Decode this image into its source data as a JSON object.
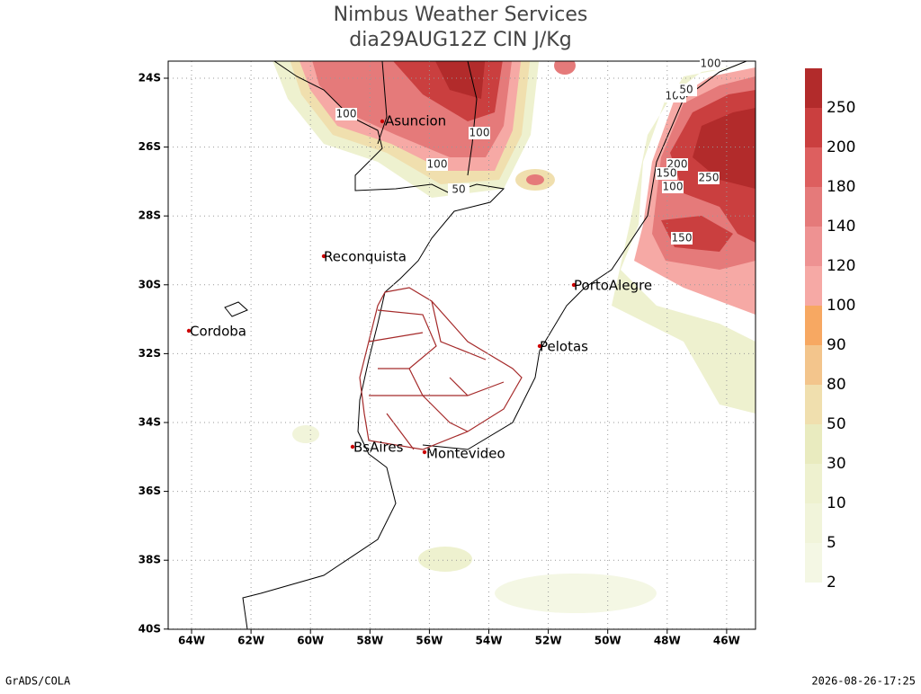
{
  "header": {
    "title": "Nimbus Weather Services",
    "subtitle": "dia29AUG12Z CIN J/Kg"
  },
  "axes": {
    "lat_labels": [
      "24S",
      "26S",
      "28S",
      "30S",
      "32S",
      "34S",
      "36S",
      "38S",
      "40S"
    ],
    "lon_labels": [
      "64W",
      "62W",
      "60W",
      "58W",
      "56W",
      "54W",
      "52W",
      "50W",
      "48W",
      "46W"
    ]
  },
  "cities": [
    "Asuncion",
    "Reconquista",
    "Cordoba",
    "PortoAlegre",
    "Pelotas",
    "BsAires",
    "Montevideo"
  ],
  "contour_labels": [
    "100",
    "100",
    "100",
    "100",
    "50",
    "100",
    "200",
    "150",
    "250",
    "100",
    "150",
    "50"
  ],
  "colorbar": {
    "labels": [
      "2",
      "5",
      "10",
      "30",
      "50",
      "80",
      "90",
      "100",
      "120",
      "140",
      "180",
      "200",
      "250"
    ],
    "colors": [
      "#f4f7e4",
      "#f1f4da",
      "#eef1cf",
      "#e9ebbf",
      "#f0dfae",
      "#f3c58c",
      "#f7a862",
      "#f6a9a5",
      "#ee9292",
      "#e57a7a",
      "#dd5f5f",
      "#ca3f3f",
      "#b22b2b"
    ]
  },
  "footer": {
    "left": "GrADS/COLA",
    "right": "2026-08-26-17:25"
  }
}
